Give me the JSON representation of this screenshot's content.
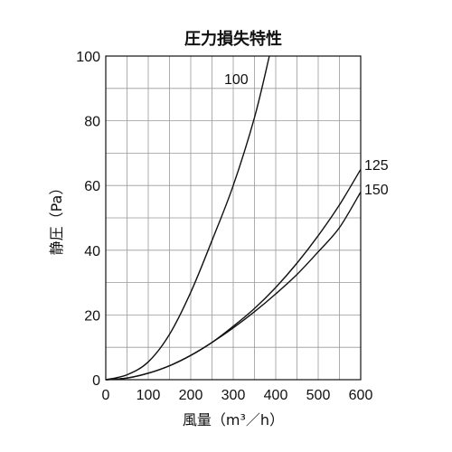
{
  "chart_data": {
    "type": "line",
    "title": "圧力損失特性",
    "xlabel": "風量（m³／h）",
    "ylabel": "静圧（Pa）",
    "xlim": [
      0,
      600
    ],
    "ylim": [
      0,
      100
    ],
    "x_ticks": [
      0,
      100,
      200,
      300,
      400,
      500,
      600
    ],
    "y_ticks": [
      0,
      20,
      40,
      60,
      80,
      100
    ],
    "x_minor_step": 50,
    "y_minor_step": 10,
    "grid": true,
    "series": [
      {
        "name": "100",
        "x": [
          0,
          50,
          100,
          150,
          200,
          250,
          300,
          350,
          385
        ],
        "values": [
          0,
          1.5,
          5.5,
          14,
          27,
          43,
          60,
          81,
          100
        ]
      },
      {
        "name": "125",
        "x": [
          0,
          50,
          100,
          150,
          200,
          250,
          300,
          350,
          400,
          450,
          500,
          550,
          600
        ],
        "values": [
          0,
          0.5,
          2,
          4.3,
          7.5,
          11.5,
          16.5,
          22,
          28.5,
          36,
          44.5,
          54,
          65
        ]
      },
      {
        "name": "150",
        "x": [
          0,
          50,
          100,
          150,
          200,
          250,
          300,
          350,
          400,
          450,
          500,
          550,
          600
        ],
        "values": [
          0,
          0.5,
          2,
          4.3,
          7.5,
          11.5,
          16,
          21,
          26.5,
          32.5,
          39.5,
          47,
          58
        ]
      }
    ]
  }
}
